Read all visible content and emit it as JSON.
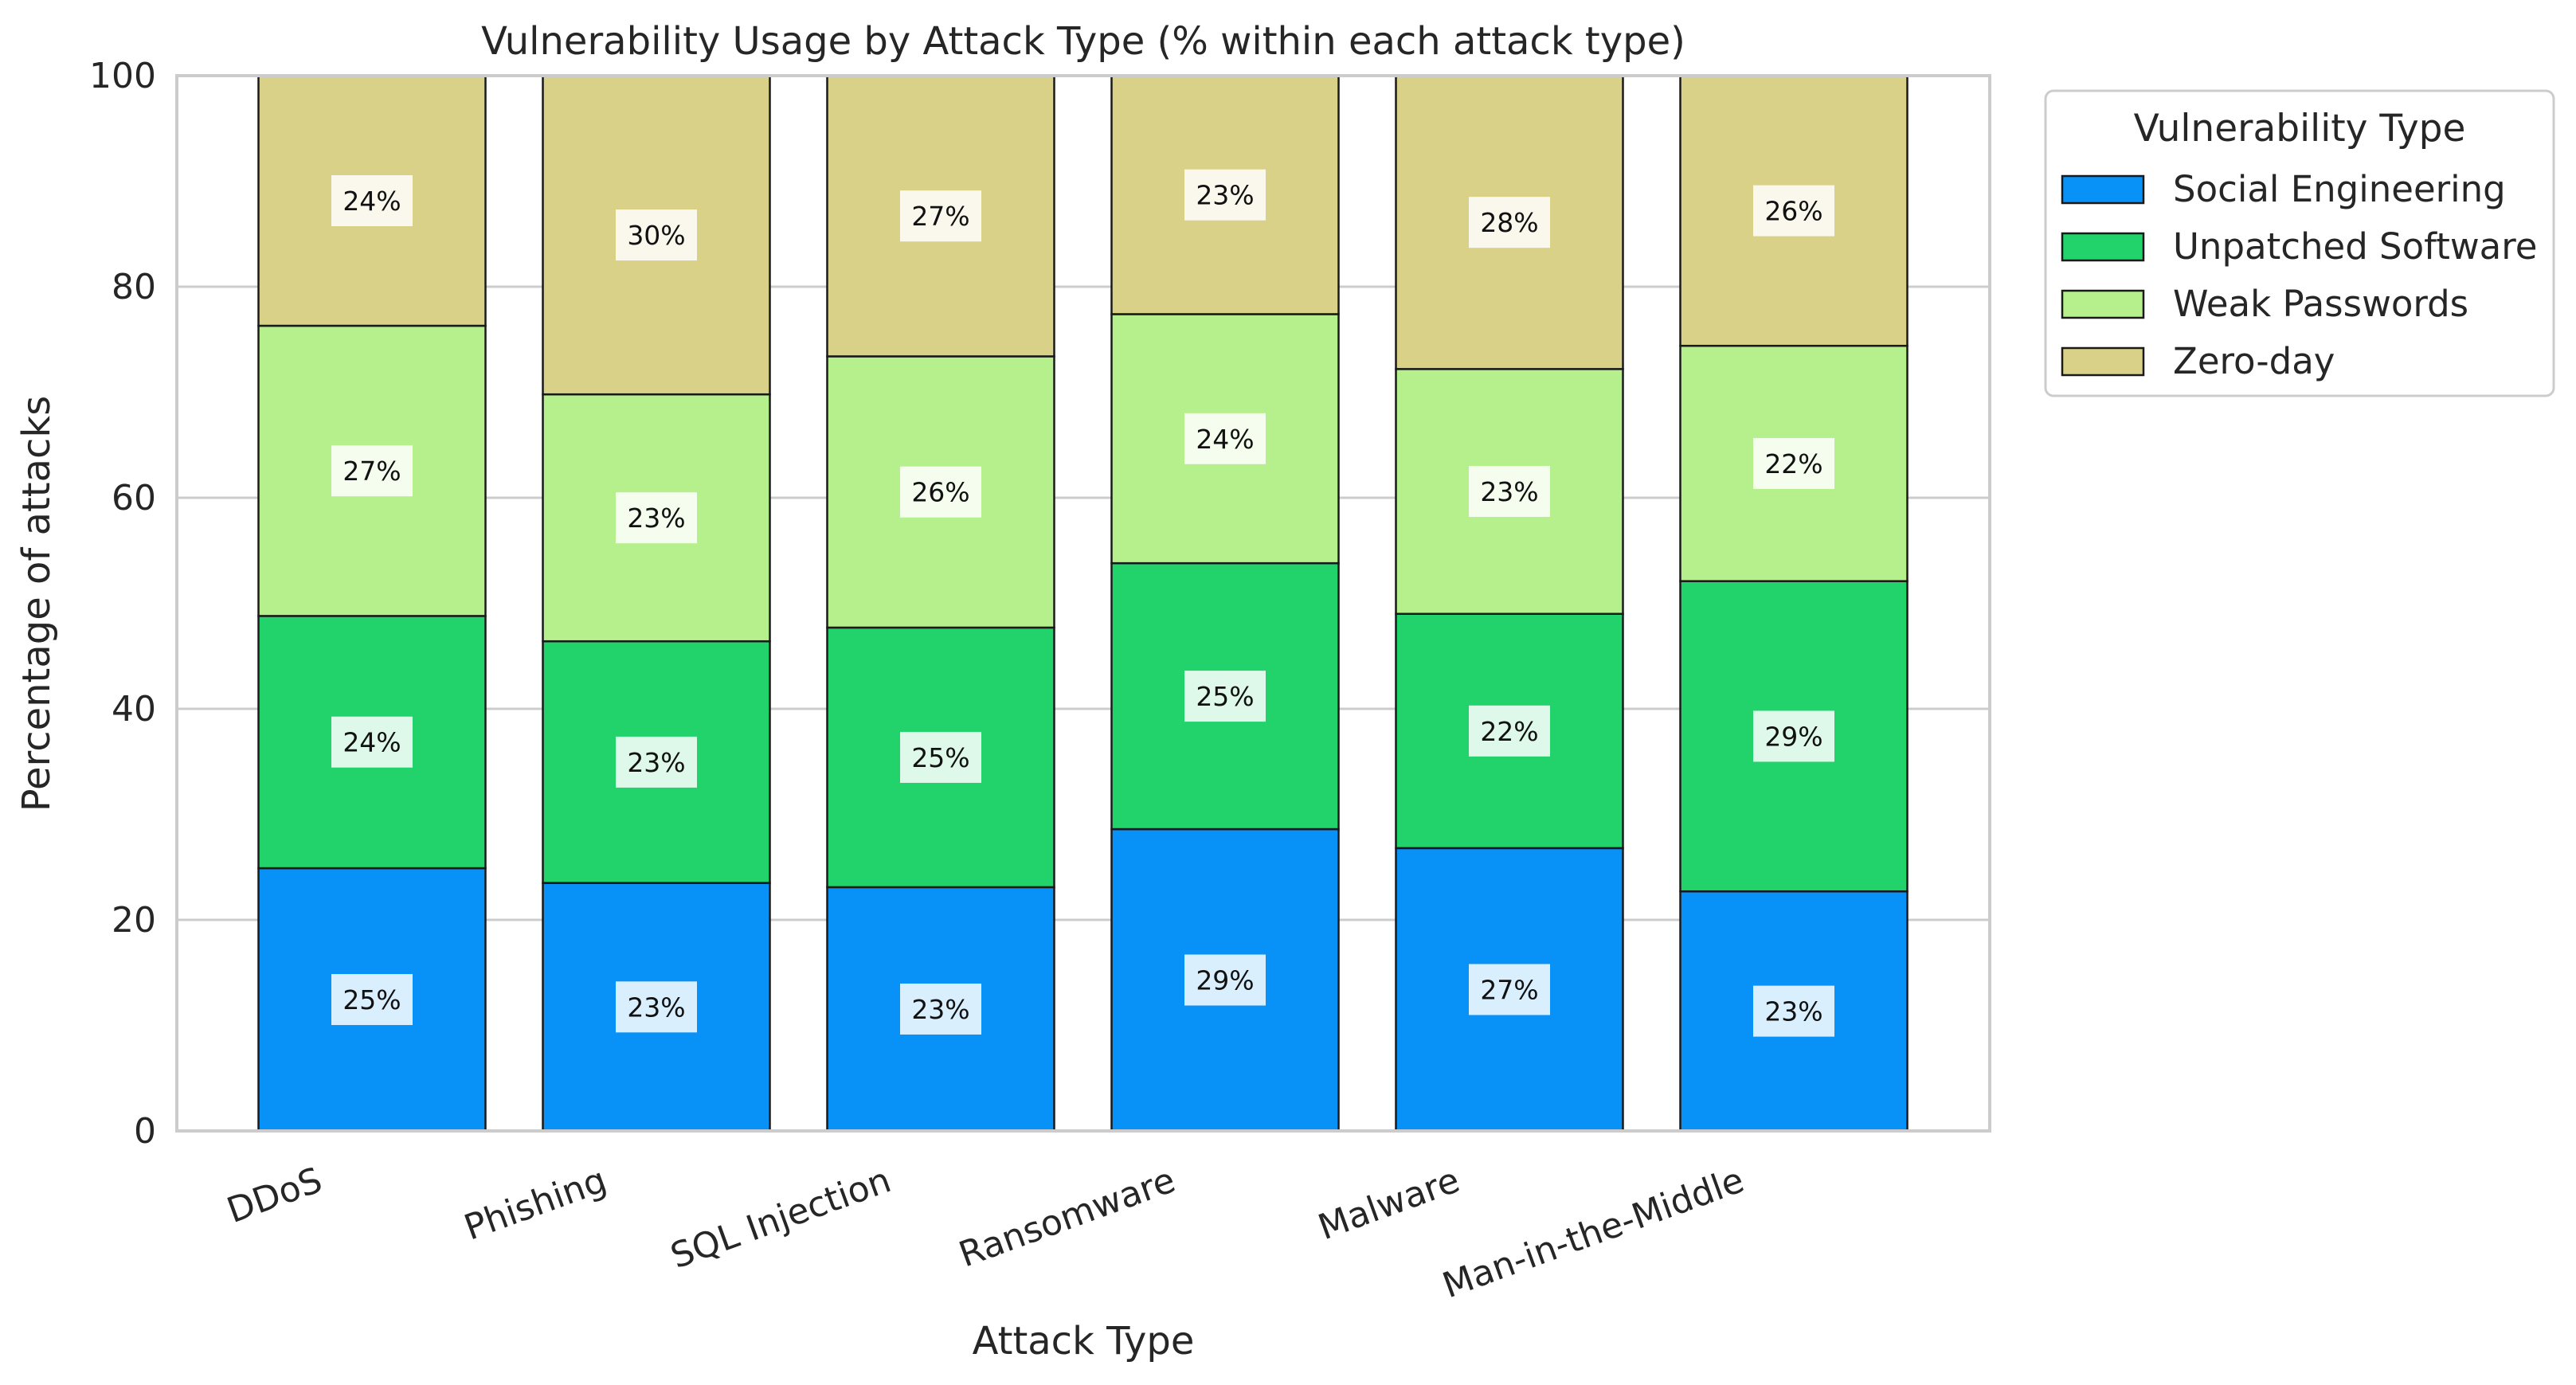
{
  "chart_data": {
    "type": "bar",
    "stacked": true,
    "title": "Vulnerability Usage by Attack Type (% within each attack type)",
    "xlabel": "Attack Type",
    "ylabel": "Percentage of attacks",
    "ylim": [
      0,
      100
    ],
    "yticks": [
      0,
      20,
      40,
      60,
      80,
      100
    ],
    "grid": "y",
    "categories": [
      "DDoS",
      "Phishing",
      "SQL Injection",
      "Ransomware",
      "Malware",
      "Man-in-the-Middle"
    ],
    "series": [
      {
        "name": "Social Engineering",
        "color": "#0891f7",
        "values": [
          24.9,
          23.5,
          23.1,
          28.6,
          26.8,
          22.7
        ],
        "labels": [
          "25%",
          "23%",
          "23%",
          "29%",
          "27%",
          "23%"
        ]
      },
      {
        "name": "Unpatched Software",
        "color": "#22d36b",
        "values": [
          23.9,
          22.9,
          24.6,
          25.2,
          22.2,
          29.4
        ],
        "labels": [
          "24%",
          "23%",
          "25%",
          "25%",
          "22%",
          "29%"
        ]
      },
      {
        "name": "Weak Passwords",
        "color": "#b5f08c",
        "values": [
          27.5,
          23.4,
          25.7,
          23.6,
          23.2,
          22.3
        ],
        "labels": [
          "27%",
          "23%",
          "26%",
          "24%",
          "23%",
          "22%"
        ]
      },
      {
        "name": "Zero-day",
        "color": "#d9d187",
        "values": [
          23.7,
          30.2,
          26.6,
          22.6,
          27.8,
          25.6
        ],
        "labels": [
          "24%",
          "30%",
          "27%",
          "23%",
          "28%",
          "26%"
        ]
      }
    ],
    "legend": {
      "title": "Vulnerability Type",
      "placement": "outside-right"
    }
  }
}
